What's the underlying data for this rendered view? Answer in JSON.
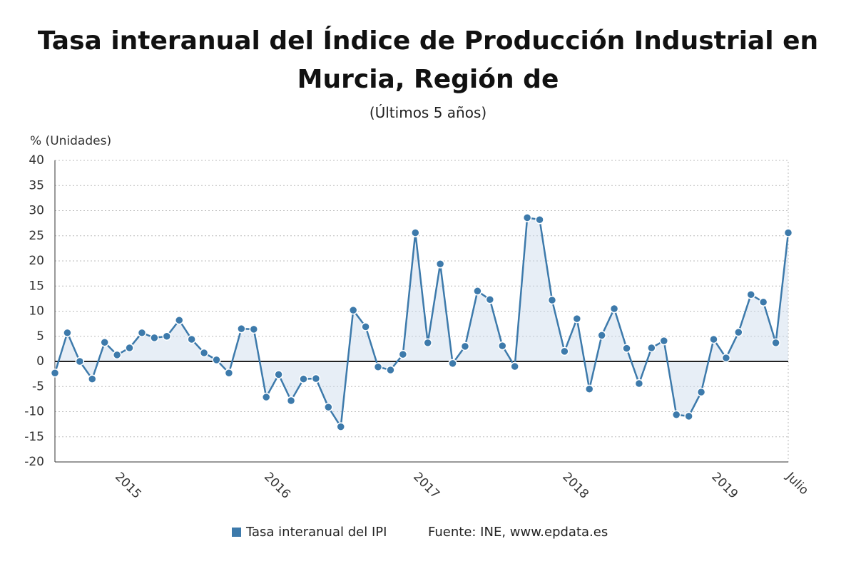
{
  "chart_data": {
    "type": "line",
    "title": "Tasa interanual del Índice de Producción Industrial en Murcia, Región de",
    "subtitle": "(Últimos 5 años)",
    "y_axis_label": "% (Unidades)",
    "source": "Fuente: INE, www.epdata.es",
    "categories": [
      null,
      null,
      null,
      null,
      null,
      "2015",
      null,
      null,
      null,
      null,
      null,
      null,
      null,
      null,
      null,
      null,
      null,
      "2016",
      null,
      null,
      null,
      null,
      null,
      null,
      null,
      null,
      null,
      null,
      null,
      "2017",
      null,
      null,
      null,
      null,
      null,
      null,
      null,
      null,
      null,
      null,
      null,
      "2018",
      null,
      null,
      null,
      null,
      null,
      null,
      null,
      null,
      null,
      null,
      null,
      "2019",
      null,
      null,
      null,
      null,
      null,
      "Julio"
    ],
    "series": [
      {
        "name": "Tasa interanual del IPI",
        "color": "#3d7aab",
        "values": [
          -2.3,
          5.7,
          0,
          -3.5,
          3.8,
          1.3,
          2.7,
          5.7,
          4.7,
          5.0,
          8.2,
          4.4,
          1.7,
          0.3,
          -2.3,
          6.5,
          6.4,
          -7.1,
          -2.6,
          -7.8,
          -3.5,
          -3.4,
          -9.1,
          -13,
          10.2,
          6.9,
          -1.1,
          -1.7,
          1.4,
          25.6,
          3.7,
          19.4,
          -0.4,
          3.0,
          14.0,
          12.3,
          3.1,
          -1,
          28.6,
          28.2,
          12.2,
          2.0,
          8.5,
          -5.5,
          5.2,
          10.5,
          2.6,
          -4.4,
          2.7,
          4.1,
          -10.6,
          -10.9,
          -6.1,
          4.4,
          0.7,
          5.8,
          13.3,
          11.8,
          3.7,
          25.6
        ]
      }
    ],
    "ylim": [
      -20,
      40
    ],
    "yticks": [
      -20,
      -15,
      -10,
      -5,
      0,
      5,
      10,
      15,
      20,
      25,
      30,
      35,
      40
    ],
    "grid": true
  }
}
